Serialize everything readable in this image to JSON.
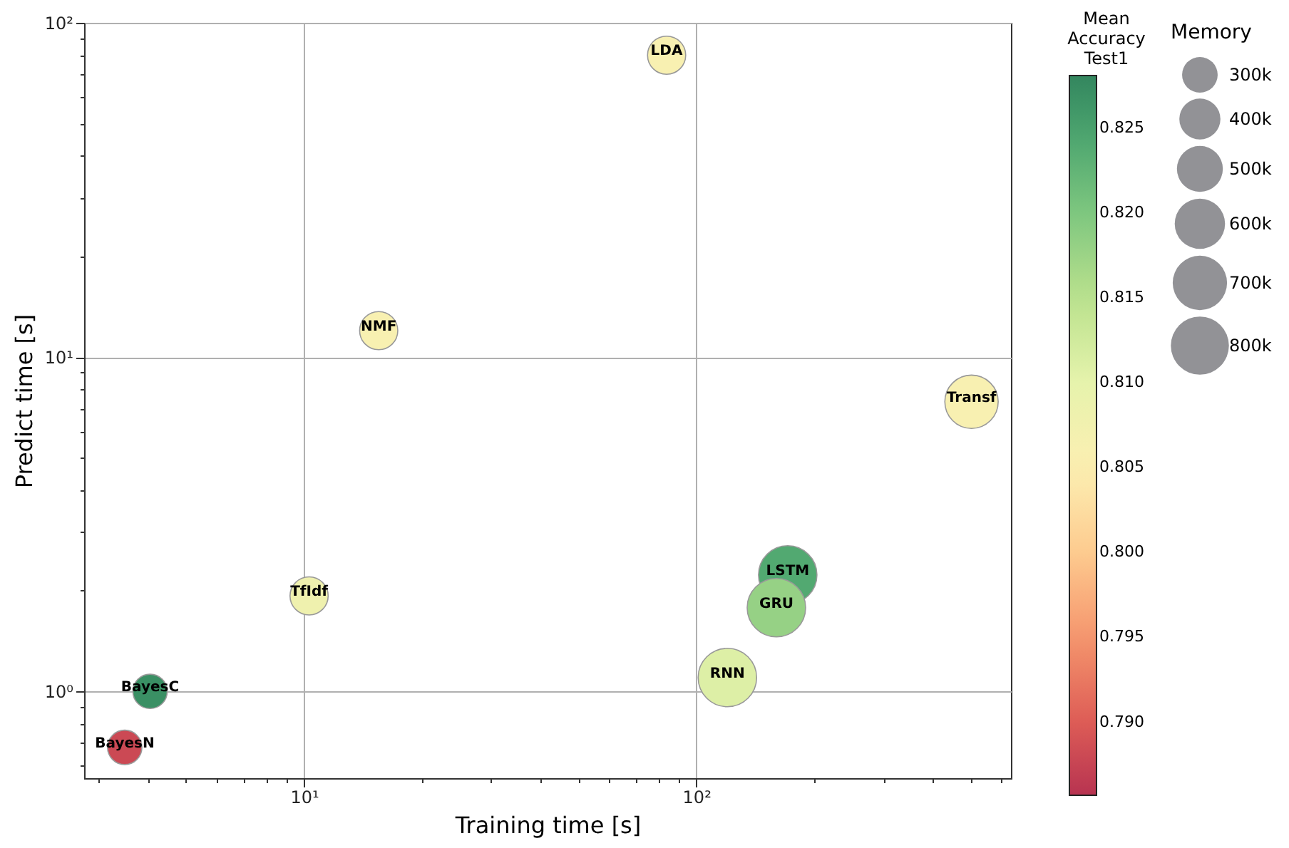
{
  "chart_data": {
    "type": "bubble",
    "xlabel": "Training time [s]",
    "ylabel": "Predict time [s]",
    "clabel": "Mean Accuracy Test1",
    "legend_title": "Memory",
    "log": "xy",
    "grid": true,
    "marker": "circle",
    "x": [
      3.49,
      4.05,
      10.3,
      15.5,
      84,
      503,
      171,
      160,
      120
    ],
    "values": [
      0.68,
      1.0,
      1.93,
      12.0,
      80,
      7.35,
      2.23,
      1.78,
      1.1
    ],
    "sizes": [
      280000,
      280000,
      345000,
      345000,
      345000,
      675000,
      810000,
      810000,
      810000
    ],
    "cvalues": [
      0.788,
      0.827,
      0.808,
      0.806,
      0.806,
      0.806,
      0.824,
      0.818,
      0.811
    ],
    "size_legend": [
      {
        "value": 300000,
        "label": "300k"
      },
      {
        "value": 400000,
        "label": "400k"
      },
      {
        "value": 500000,
        "label": "500k"
      },
      {
        "value": 600000,
        "label": "600k"
      },
      {
        "value": 700000,
        "label": "700k"
      },
      {
        "value": 800000,
        "label": "800k"
      }
    ],
    "clim": [
      0.7857,
      0.8281
    ],
    "cticks": [
      {
        "value": 0.79,
        "label": "0.790"
      },
      {
        "value": 0.795,
        "label": "0.795"
      },
      {
        "value": 0.8,
        "label": "0.800"
      },
      {
        "value": 0.805,
        "label": "0.805"
      },
      {
        "value": 0.81,
        "label": "0.810"
      },
      {
        "value": 0.815,
        "label": "0.815"
      },
      {
        "value": 0.82,
        "label": "0.820"
      },
      {
        "value": 0.825,
        "label": "0.825"
      }
    ],
    "xlim": [
      2.75,
      634
    ],
    "ylim": [
      0.55,
      100
    ],
    "xticks": [
      {
        "value": 3,
        "label": null
      },
      {
        "value": 4,
        "label": null
      },
      {
        "value": 5,
        "label": null
      },
      {
        "value": 6,
        "label": null
      },
      {
        "value": 7,
        "label": null
      },
      {
        "value": 8,
        "label": null
      },
      {
        "value": 9,
        "label": null
      },
      {
        "value": 10,
        "label": "10¹"
      },
      {
        "value": 20,
        "label": null
      },
      {
        "value": 30,
        "label": null
      },
      {
        "value": 40,
        "label": null
      },
      {
        "value": 50,
        "label": null
      },
      {
        "value": 60,
        "label": null
      },
      {
        "value": 70,
        "label": null
      },
      {
        "value": 80,
        "label": null
      },
      {
        "value": 90,
        "label": null
      },
      {
        "value": 100,
        "label": "10²"
      },
      {
        "value": 200,
        "label": null
      },
      {
        "value": 300,
        "label": null
      },
      {
        "value": 400,
        "label": null
      },
      {
        "value": 500,
        "label": null
      },
      {
        "value": 600,
        "label": null
      }
    ],
    "yticks": [
      {
        "value": 0.6,
        "label": null
      },
      {
        "value": 0.7,
        "label": null
      },
      {
        "value": 0.8,
        "label": null
      },
      {
        "value": 0.9,
        "label": null
      },
      {
        "value": 1,
        "label": "10⁰"
      },
      {
        "value": 2,
        "label": null
      },
      {
        "value": 3,
        "label": null
      },
      {
        "value": 4,
        "label": null
      },
      {
        "value": 5,
        "label": null
      },
      {
        "value": 6,
        "label": null
      },
      {
        "value": 7,
        "label": null
      },
      {
        "value": 8,
        "label": null
      },
      {
        "value": 9,
        "label": null
      },
      {
        "value": 10,
        "label": "10¹"
      },
      {
        "value": 20,
        "label": null
      },
      {
        "value": 30,
        "label": null
      },
      {
        "value": 40,
        "label": null
      },
      {
        "value": 50,
        "label": null
      },
      {
        "value": 60,
        "label": null
      },
      {
        "value": 70,
        "label": null
      },
      {
        "value": 80,
        "label": null
      },
      {
        "value": 90,
        "label": null
      },
      {
        "value": 100,
        "label": "10²"
      }
    ],
    "annotations": [
      {
        "text": "BayesN",
        "x": 3.49,
        "y": 0.68
      },
      {
        "text": "BayesC",
        "x": 4.05,
        "y": 1.0
      },
      {
        "text": "TfIdf",
        "x": 10.3,
        "y": 1.93
      },
      {
        "text": "NMF",
        "x": 15.5,
        "y": 12.0
      },
      {
        "text": "LDA",
        "x": 84,
        "y": 80
      },
      {
        "text": "Transf",
        "x": 503,
        "y": 7.35
      },
      {
        "text": "LSTM",
        "x": 171,
        "y": 2.23
      },
      {
        "text": "GRU",
        "x": 160,
        "y": 1.78
      },
      {
        "text": "RNN",
        "x": 120,
        "y": 1.1
      }
    ]
  }
}
